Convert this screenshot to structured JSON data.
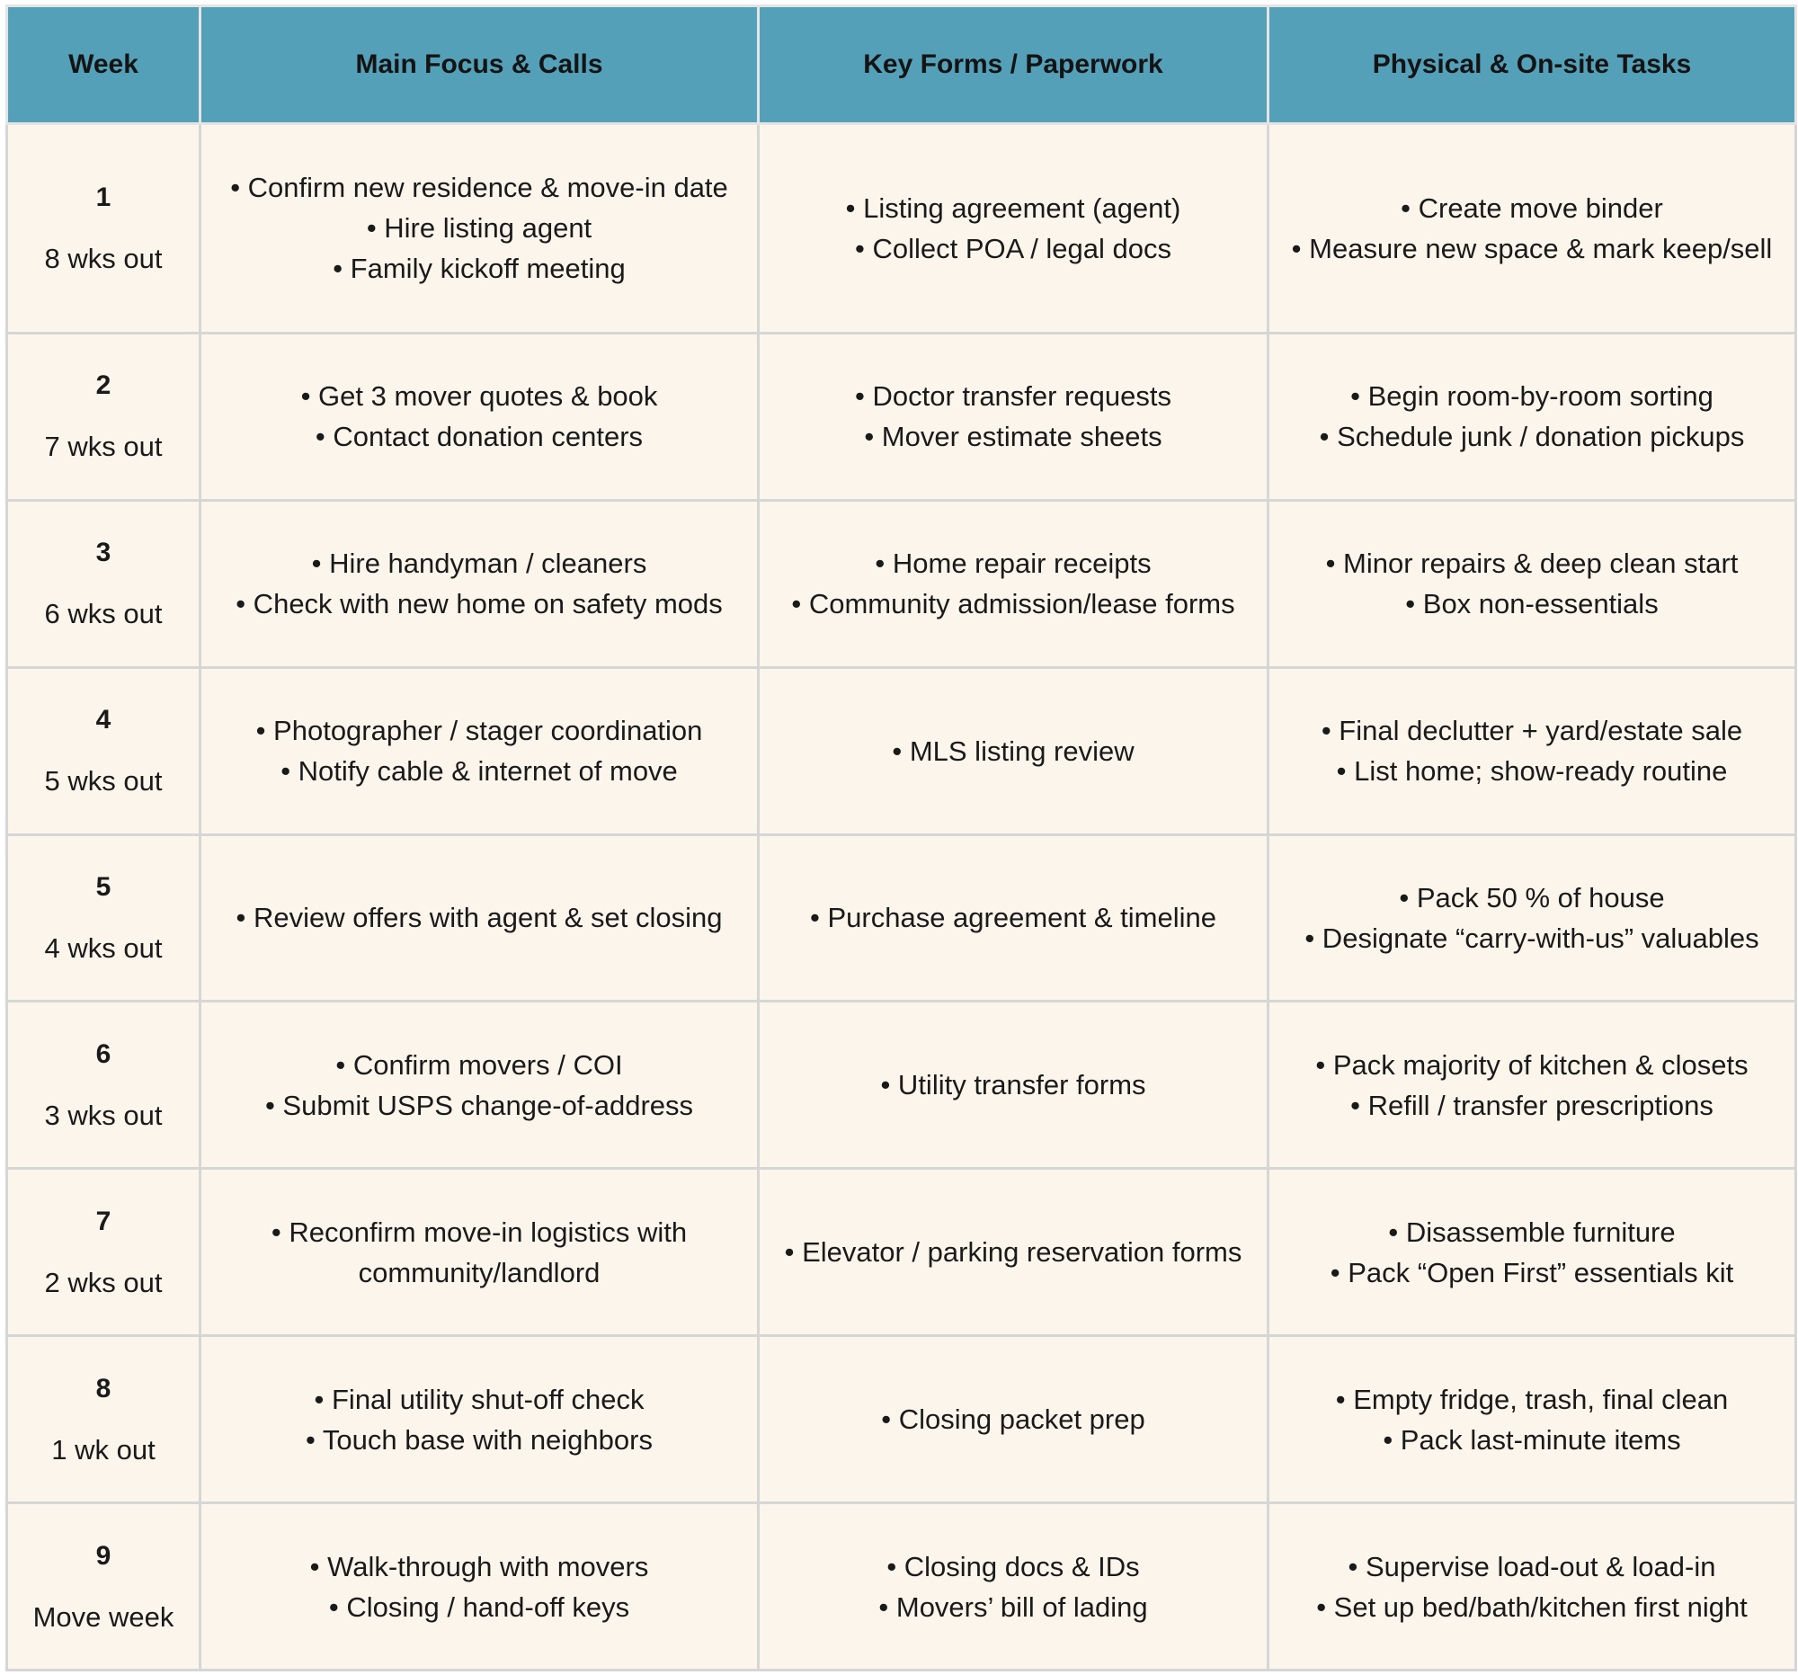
{
  "headers": {
    "week": "Week",
    "main": "Main Focus & Calls",
    "forms": "Key Forms / Paperwork",
    "physical": "Physical & On-site Tasks"
  },
  "rows": [
    {
      "week": "1",
      "when": "8 wks out",
      "main": [
        "• Confirm new residence & move-in date",
        "• Hire listing agent",
        "• Family kickoff meeting"
      ],
      "forms": [
        "• Listing agreement (agent)",
        "• Collect POA / legal docs"
      ],
      "physical": [
        "• Create move binder",
        "• Measure new space & mark keep/sell"
      ]
    },
    {
      "week": "2",
      "when": "7 wks out",
      "main": [
        "• Get 3 mover quotes & book",
        "• Contact donation centers"
      ],
      "forms": [
        "• Doctor transfer requests",
        "• Mover estimate sheets"
      ],
      "physical": [
        "• Begin room-by-room sorting",
        "• Schedule junk / donation pickups"
      ]
    },
    {
      "week": "3",
      "when": "6 wks out",
      "main": [
        "• Hire handyman / cleaners",
        "• Check with new home on safety mods"
      ],
      "forms": [
        "• Home repair receipts",
        "• Community admission/lease forms"
      ],
      "physical": [
        "• Minor repairs & deep clean start",
        "• Box non-essentials"
      ]
    },
    {
      "week": "4",
      "when": "5 wks out",
      "main": [
        "• Photographer / stager coordination",
        "• Notify cable & internet of move"
      ],
      "forms": [
        "• MLS listing review"
      ],
      "physical": [
        "• Final declutter + yard/estate sale",
        "• List home; show-ready routine"
      ]
    },
    {
      "week": "5",
      "when": "4 wks out",
      "main": [
        "• Review offers with agent & set closing"
      ],
      "forms": [
        "• Purchase agreement & timeline"
      ],
      "physical": [
        "• Pack 50 % of house",
        "• Designate “carry-with-us” valuables"
      ]
    },
    {
      "week": "6",
      "when": "3 wks out",
      "main": [
        "• Confirm movers / COI",
        "• Submit USPS change-of-address"
      ],
      "forms": [
        "• Utility transfer forms"
      ],
      "physical": [
        "• Pack majority of kitchen & closets",
        "• Refill / transfer prescriptions"
      ]
    },
    {
      "week": "7",
      "when": "2 wks out",
      "main": [
        "• Reconfirm move-in logistics with community/landlord"
      ],
      "forms": [
        "• Elevator / parking reservation forms"
      ],
      "physical": [
        "• Disassemble furniture",
        "• Pack “Open First” essentials kit"
      ]
    },
    {
      "week": "8",
      "when": "1 wk out",
      "main": [
        "• Final utility shut-off check",
        "• Touch base with neighbors"
      ],
      "forms": [
        "• Closing packet prep"
      ],
      "physical": [
        "• Empty fridge, trash, final clean",
        "• Pack last-minute items"
      ]
    },
    {
      "week": "9",
      "when": "Move week",
      "main": [
        "• Walk-through with movers",
        "• Closing / hand-off keys"
      ],
      "forms": [
        "• Closing docs & IDs",
        "• Movers’ bill of lading"
      ],
      "physical": [
        "• Supervise load-out & load-in",
        "• Set up bed/bath/kitchen first night"
      ]
    }
  ]
}
